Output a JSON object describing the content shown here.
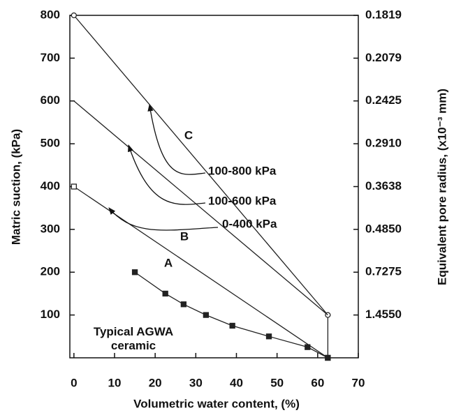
{
  "chart_data": {
    "type": "line",
    "xlabel": "Volumetric water content, (%)",
    "ylabel": "Matric suction, (kPa)",
    "y2label": "Equivalent pore radius, (x10⁻³ mm)",
    "xlim": [
      -1,
      70
    ],
    "xticks": [
      0,
      10,
      20,
      30,
      40,
      50,
      60,
      70
    ],
    "ylim": [
      0,
      800
    ],
    "yticks": [
      100,
      200,
      300,
      400,
      500,
      600,
      700,
      800
    ],
    "y2scale": "reciprocal",
    "y2lim": [
      1.455,
      0.1819
    ],
    "y2ticks": [
      {
        "value": 1.455,
        "label": "1.4550"
      },
      {
        "value": 0.7275,
        "label": "0.7275"
      },
      {
        "value": 0.485,
        "label": "0.4850"
      },
      {
        "value": 0.3638,
        "label": "0.3638"
      },
      {
        "value": 0.291,
        "label": "0.2910"
      },
      {
        "value": 0.2425,
        "label": "0.2425"
      },
      {
        "value": 0.2079,
        "label": "0.2079"
      },
      {
        "value": 0.1819,
        "label": "0.1819"
      }
    ],
    "series": [
      {
        "name": "C",
        "color": "#222222",
        "marker": "open-circle",
        "x": [
          0,
          62.5
        ],
        "values": [
          800,
          100
        ]
      },
      {
        "name": "B",
        "color": "#222222",
        "marker": "none",
        "x": [
          0,
          62.5
        ],
        "values": [
          600,
          100
        ]
      },
      {
        "name": "A",
        "color": "#222222",
        "marker": "open-square",
        "x": [
          0,
          62.5
        ],
        "values": [
          400,
          0
        ]
      },
      {
        "name": "Typical AGWA ceramic",
        "color": "#222222",
        "marker": "filled-square",
        "x": [
          15,
          22.5,
          27,
          32.5,
          39,
          48,
          57.5,
          62.5
        ],
        "values": [
          200,
          150,
          125,
          100,
          75,
          50,
          25,
          0
        ]
      }
    ],
    "annotations": [
      "100-800 kPa",
      "100-600 kPa",
      "0-400 kPa"
    ]
  }
}
